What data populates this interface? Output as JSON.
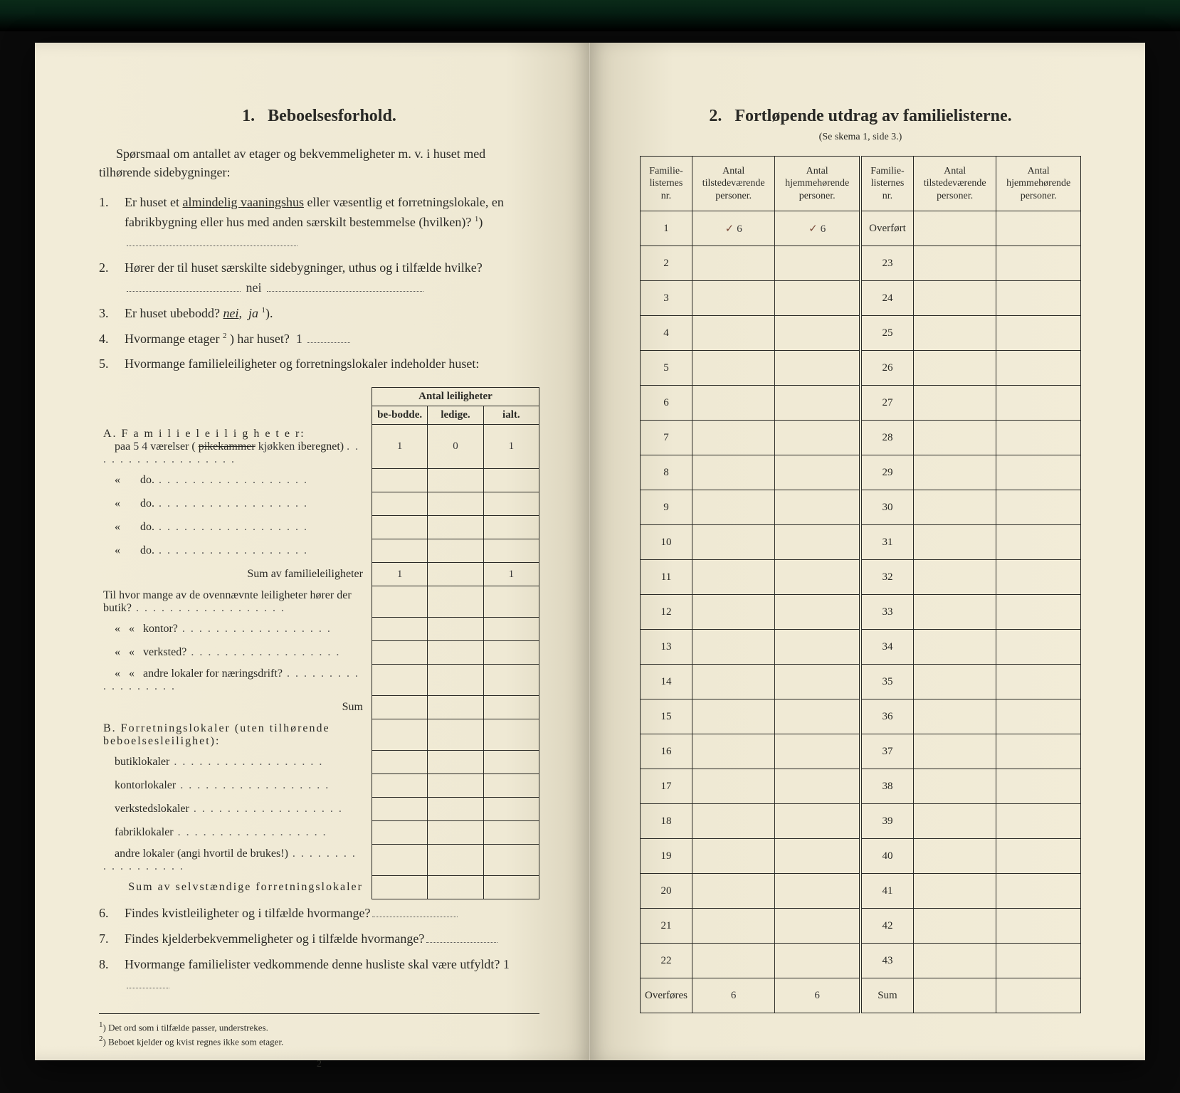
{
  "left": {
    "section_no": "1.",
    "section_title": "Beboelsesforhold.",
    "intro": "Spørsmaal om antallet av etager og bekvemmeligheter m. v. i huset med tilhørende sidebygninger:",
    "q1_a": "Er huset et ",
    "q1_u": "almindelig vaaningshus",
    "q1_b": " eller væsentlig et forretningslokale, en fabrikbygning eller hus med anden særskilt bestemmelse (hvilken)?",
    "q1_sup": "1",
    "q2_a": "Hører der til huset særskilte sidebygninger, uthus og i tilfælde hvilke?",
    "q2_ans": "nei",
    "q3_a": "Er huset ubebodd? ",
    "q3_nei": "nei",
    "q3_ja": "ja",
    "q3_sup": "1",
    "q4_a": "Hvormange etager",
    "q4_sup": "2",
    "q4_b": ") har huset?",
    "q4_ans": "1",
    "q5": "Hvormange familieleiligheter og forretningslokaler indeholder huset:",
    "tbl_hdr_group": "Antal leiligheter",
    "tbl_hdr_be": "be-bodde.",
    "tbl_hdr_led": "ledige.",
    "tbl_hdr_ialt": "ialt.",
    "A_label": "A. F a m i l i e l e i l i g h e t e r:",
    "A_row1_pre": "paa ",
    "A_row1_hand1": "5 4",
    "A_row1_mid": " værelser (",
    "A_row1_strike": "pikekammer",
    "A_row1_hand2": "kjøkken",
    "A_row1_post": " iberegnet)",
    "A_row_do": "do.",
    "A_row1_b": "1",
    "A_row1_l": "0",
    "A_row1_i": "1",
    "A_sum_label": "Sum av familieleiligheter",
    "A_sum_b": "1",
    "A_sum_i": "1",
    "mid_q1": "Til hvor mange av de ovennævnte leiligheter hører der butik?",
    "mid_q2": "kontor?",
    "mid_q3": "verksted?",
    "mid_q4": "andre lokaler for næringsdrift?",
    "mid_sum": "Sum",
    "B_label": "B. Forretningslokaler (uten tilhørende beboelsesleilighet):",
    "B_r1": "butiklokaler",
    "B_r2": "kontorlokaler",
    "B_r3": "verkstedslokaler",
    "B_r4": "fabriklokaler",
    "B_r5": "andre lokaler (angi hvortil de brukes!)",
    "B_sum": "Sum av selvstændige forretningslokaler",
    "q6": "Findes kvistleiligheter og i tilfælde hvormange?",
    "q7": "Findes kjelderbekvemmeligheter og i tilfælde hvormange?",
    "q8_a": "Hvormange familielister vedkommende denne husliste skal være utfyldt?",
    "q8_ans": "1",
    "fn1": "Det ord som i tilfælde passer, understrekes.",
    "fn2": "Beboet kjelder og kvist regnes ikke som etager.",
    "page_no": "2"
  },
  "right": {
    "section_no": "2.",
    "section_title": "Fortløpende utdrag av familielisterne.",
    "subtitle": "(Se skema 1, side 3.)",
    "h_nr": "Familie-listernes nr.",
    "h_til": "Antal tilstedeværende personer.",
    "h_hjem": "Antal hjemmehørende personer.",
    "overfort": "Overført",
    "overfores": "Overføres",
    "sum": "Sum",
    "row1_til": "6",
    "row1_hjem": "6",
    "of_til": "6",
    "of_hjem": "6",
    "left_nrs": [
      "1",
      "2",
      "3",
      "4",
      "5",
      "6",
      "7",
      "8",
      "9",
      "10",
      "11",
      "12",
      "13",
      "14",
      "15",
      "16",
      "17",
      "18",
      "19",
      "20",
      "21",
      "22"
    ],
    "right_nrs": [
      "23",
      "24",
      "25",
      "26",
      "27",
      "28",
      "29",
      "30",
      "31",
      "32",
      "33",
      "34",
      "35",
      "36",
      "37",
      "38",
      "39",
      "40",
      "41",
      "42",
      "43"
    ]
  }
}
